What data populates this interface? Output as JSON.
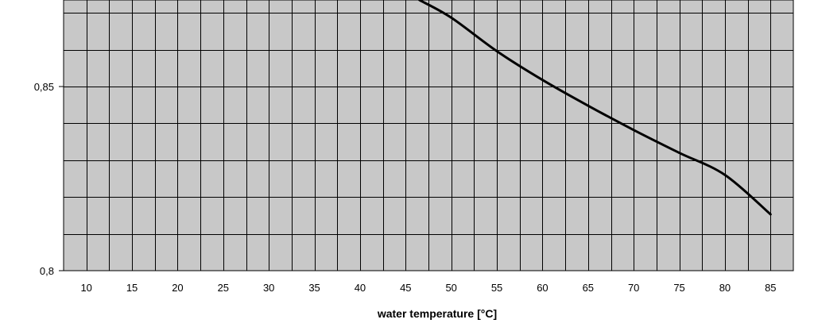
{
  "chart_data": {
    "type": "line",
    "title": "",
    "xlabel": "water temperature [°C]",
    "ylabel": "",
    "x_ticks": [
      10,
      15,
      20,
      25,
      30,
      35,
      40,
      45,
      50,
      55,
      60,
      65,
      70,
      75,
      80,
      85
    ],
    "y_ticks": [
      0.8,
      0.85
    ],
    "y_tick_labels": [
      "0,8",
      "0,85"
    ],
    "xlim": [
      7.5,
      87.5
    ],
    "ylim": [
      0.8,
      0.8735
    ],
    "grid": true,
    "colors": {
      "plot_background": "#c8c8c8",
      "grid": "#000000",
      "line": "#000000"
    },
    "series": [
      {
        "x": [
          46.5,
          50,
          55,
          60,
          65,
          70,
          75,
          80,
          85
        ],
        "y": [
          0.8735,
          0.8687,
          0.8596,
          0.8518,
          0.8448,
          0.8382,
          0.832,
          0.826,
          0.8153
        ]
      }
    ]
  }
}
